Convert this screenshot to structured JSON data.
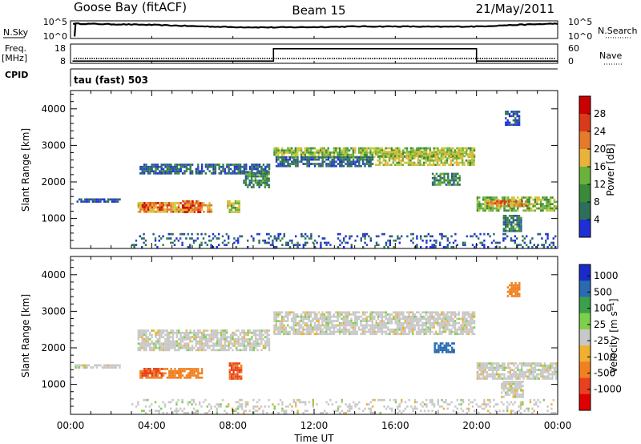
{
  "header": {
    "station": "Goose Bay (fitACF)",
    "beam": "Beam 15",
    "date": "21/May/2011"
  },
  "strip_panels": {
    "nsky": {
      "label": "N.Sky",
      "left_ticks": [
        "10^5",
        "10^0"
      ],
      "right_label": "N.Search",
      "right_ticks": [
        "10^5",
        "10^0"
      ]
    },
    "freq": {
      "label_lines": [
        "Freq.",
        "[MHz]"
      ],
      "left_ticks": [
        "18",
        "8"
      ],
      "right_label": "Nave",
      "right_ticks": [
        "60",
        "0"
      ]
    },
    "cpid": {
      "label": "CPID",
      "program": "tau (fast) 503"
    }
  },
  "time_axis": {
    "ticks": [
      "00:00",
      "04:00",
      "08:00",
      "12:00",
      "16:00",
      "20:00",
      "00:00"
    ],
    "label": "Time UT"
  },
  "panels": {
    "power": {
      "ylabel": "Slant Range [km]",
      "yticks": [
        "4000",
        "3000",
        "2000",
        "1000"
      ],
      "colorbar_label": "Power [dB]",
      "colorbar_ticks": [
        "28",
        "24",
        "20",
        "16",
        "12",
        "8",
        "4"
      ]
    },
    "velocity": {
      "ylabel": "Slant Range [km]",
      "yticks": [
        "4000",
        "3000",
        "2000",
        "1000"
      ],
      "colorbar_label": "Velocity [m s⁻¹]",
      "colorbar_ticks": [
        "1000",
        "500",
        "100",
        "25",
        "-25",
        "-100",
        "-500",
        "-1000"
      ]
    }
  },
  "chart_data": [
    {
      "type": "line",
      "title": "N.Sky",
      "x_range_hours": [
        0,
        24
      ],
      "ylim_log10": [
        0,
        5
      ],
      "x": [
        0,
        2,
        4,
        6,
        8,
        10,
        12,
        14,
        16,
        18,
        20,
        22,
        24
      ],
      "series": [
        {
          "values_log10": [
            4.4,
            4.2,
            4.0,
            3.6,
            3.3,
            3.2,
            3.3,
            3.5,
            3.5,
            3.4,
            3.5,
            4.0,
            4.4
          ]
        }
      ]
    },
    {
      "type": "line",
      "title": "Freq. / Nave",
      "x_range_hours": [
        0,
        24
      ],
      "freq_ylim_mhz": [
        8,
        18
      ],
      "nave_ylim": [
        0,
        60
      ],
      "series": [
        {
          "name": "Freq. [MHz]",
          "x": [
            0.1,
            10.0,
            10.0,
            20.0,
            20.0,
            24.0
          ],
          "values": [
            8.8,
            8.8,
            15.8,
            15.8,
            8.8,
            8.8
          ]
        }
      ]
    },
    {
      "type": "heatmap",
      "title": "Power [dB]",
      "xlim_hours": [
        0,
        24
      ],
      "ylim_km": [
        180,
        4500
      ],
      "color_scale_db": [
        0,
        30
      ],
      "regions": [
        {
          "t0": 0.2,
          "t1": 2.5,
          "r0": 1400,
          "r1": 1550,
          "value": 4
        },
        {
          "t0": 3.3,
          "t1": 7.0,
          "r0": 1150,
          "r1": 1450,
          "value": 20
        },
        {
          "t0": 3.5,
          "t1": 4.6,
          "r0": 1200,
          "r1": 1450,
          "value": 24
        },
        {
          "t0": 5.5,
          "t1": 6.5,
          "r0": 1100,
          "r1": 1500,
          "value": 24
        },
        {
          "t0": 3.4,
          "t1": 9.9,
          "r0": 2150,
          "r1": 2500,
          "value": 6
        },
        {
          "t0": 8.5,
          "t1": 9.9,
          "r0": 1800,
          "r1": 2300,
          "value": 10
        },
        {
          "t0": 7.7,
          "t1": 8.4,
          "r0": 1100,
          "r1": 1500,
          "value": 16
        },
        {
          "t0": 10.0,
          "t1": 20.0,
          "r0": 2650,
          "r1": 2950,
          "value": 14
        },
        {
          "t0": 10.1,
          "t1": 15.0,
          "r0": 2350,
          "r1": 2700,
          "value": 6
        },
        {
          "t0": 15.0,
          "t1": 20.0,
          "r0": 2400,
          "r1": 2850,
          "value": 16
        },
        {
          "t0": 17.8,
          "t1": 19.3,
          "r0": 1850,
          "r1": 2250,
          "value": 10
        },
        {
          "t0": 20.0,
          "t1": 24.0,
          "r0": 1150,
          "r1": 1600,
          "value": 14
        },
        {
          "t0": 20.5,
          "t1": 22.5,
          "r0": 1300,
          "r1": 1500,
          "value": 22
        },
        {
          "t0": 21.3,
          "t1": 22.3,
          "r0": 600,
          "r1": 1100,
          "value": 8
        },
        {
          "t0": 21.4,
          "t1": 22.2,
          "r0": 3500,
          "r1": 3950,
          "value": 4
        },
        {
          "t0": 3.0,
          "t1": 24.0,
          "r0": 180,
          "r1": 600,
          "value": 5
        }
      ]
    },
    {
      "type": "heatmap",
      "title": "Velocity [m s-1]",
      "xlim_hours": [
        0,
        24
      ],
      "ylim_km": [
        180,
        4500
      ],
      "color_scale_ms": [
        -1000,
        1000
      ],
      "regions": [
        {
          "t0": 0.2,
          "t1": 2.5,
          "r0": 1400,
          "r1": 1550,
          "value": 0
        },
        {
          "t0": 3.3,
          "t1": 9.9,
          "r0": 1900,
          "r1": 2500,
          "value": 0
        },
        {
          "t0": 3.4,
          "t1": 6.6,
          "r0": 1100,
          "r1": 1450,
          "value": -300
        },
        {
          "t0": 3.5,
          "t1": 4.6,
          "r0": 1200,
          "r1": 1450,
          "value": -600
        },
        {
          "t0": 7.8,
          "t1": 8.5,
          "r0": 1100,
          "r1": 1600,
          "value": -500
        },
        {
          "t0": 10.0,
          "t1": 20.0,
          "r0": 2300,
          "r1": 3000,
          "value": 0
        },
        {
          "t0": 17.9,
          "t1": 19.0,
          "r0": 1850,
          "r1": 2150,
          "value": 700
        },
        {
          "t0": 20.0,
          "t1": 24.0,
          "r0": 1100,
          "r1": 1600,
          "value": 0
        },
        {
          "t0": 21.2,
          "t1": 22.4,
          "r0": 600,
          "r1": 1100,
          "value": 0
        },
        {
          "t0": 21.5,
          "t1": 22.2,
          "r0": 3350,
          "r1": 3800,
          "value": -150
        },
        {
          "t0": 3.0,
          "t1": 24.0,
          "r0": 180,
          "r1": 600,
          "value": 0
        }
      ]
    }
  ]
}
